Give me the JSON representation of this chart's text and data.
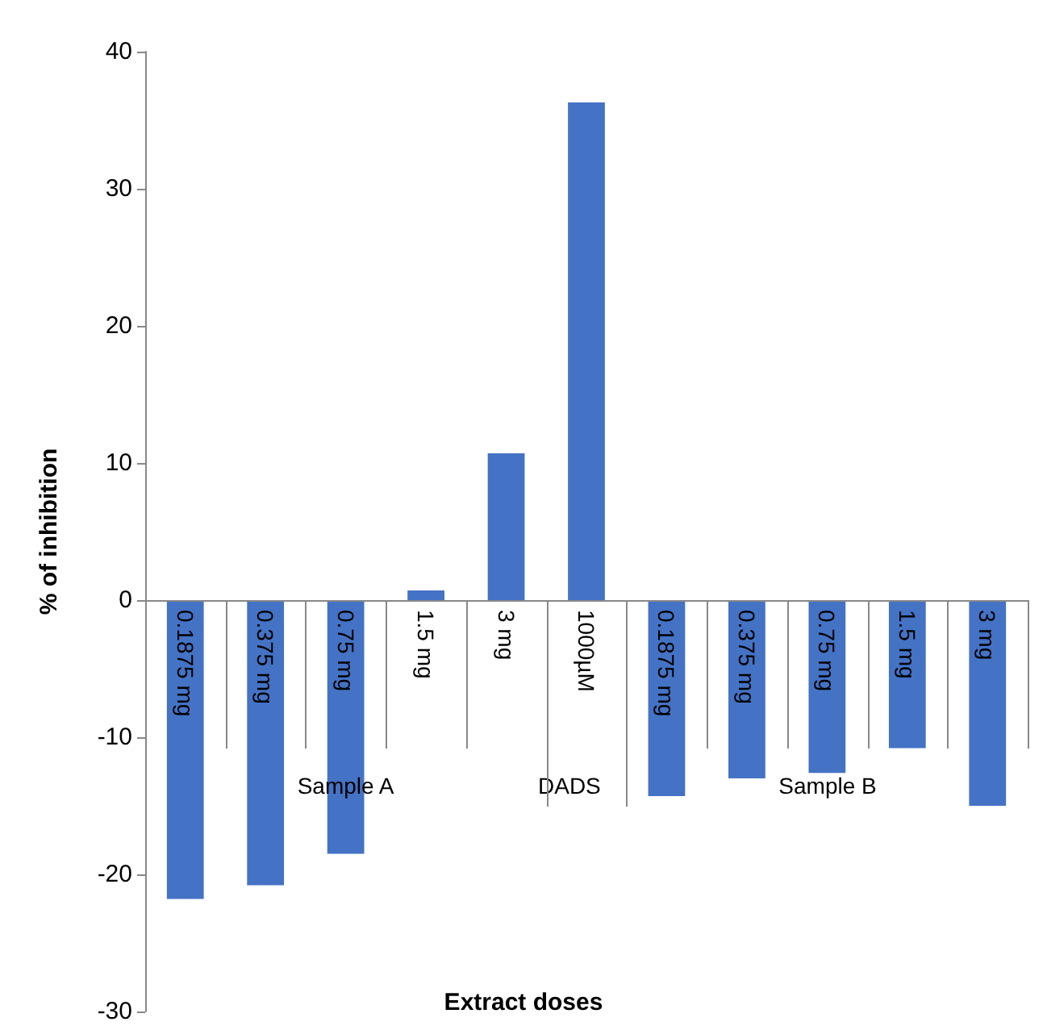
{
  "chart_data": {
    "type": "bar",
    "xlabel": "Extract doses",
    "ylabel": "% of inhibition",
    "categories": [
      "0.1875 mg",
      "0.375 mg",
      "0.75 mg",
      "1.5 mg",
      "3 mg",
      "1000µM",
      "0.1875 mg",
      "0.375 mg",
      "0.75 mg",
      "1.5 mg",
      "3 mg"
    ],
    "values": [
      -21.8,
      -20.8,
      -18.5,
      0.7,
      10.7,
      36.3,
      -14.3,
      -13.0,
      -12.6,
      -10.8,
      -15.0
    ],
    "color": "#4472c4",
    "ylim": [
      -30,
      40
    ],
    "yticks": [
      -30,
      -20,
      -10,
      0,
      10,
      20,
      30,
      40
    ],
    "annotations": [
      "Sample A",
      "DADS",
      "Sample B"
    ],
    "grid": false
  }
}
